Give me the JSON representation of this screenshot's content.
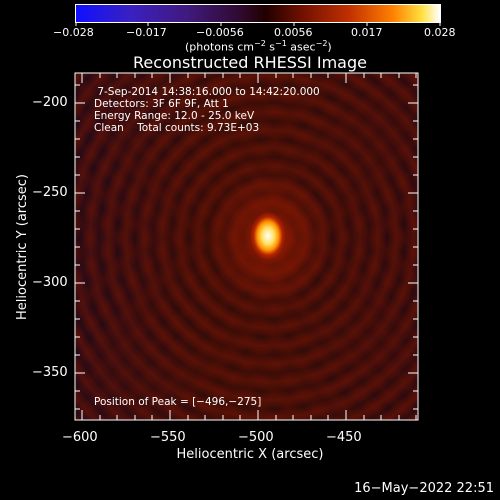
{
  "colorbar": {
    "ticks": [
      "−0.028",
      "−0.017",
      "−0.0056",
      "0.0056",
      "0.017",
      "0.028"
    ],
    "units_prefix": "(photons cm",
    "units_sup1": "−2",
    "units_mid1": " s",
    "units_sup2": "−1",
    "units_mid2": " asec",
    "units_sup3": "−2",
    "units_suffix": ")"
  },
  "title": "Reconstructed RHESSI Image",
  "info": {
    "time": " 7-Sep-2014 14:38:16.000 to 14:42:20.000",
    "detectors": "Detectors: 3F 6F 9F, Att 1",
    "energy": "Energy Range: 12.0 - 25.0 keV",
    "clean": "Clean    Total counts: 9.73E+03"
  },
  "peak_label": "Position of Peak = [−496,−275]",
  "x_axis": {
    "label": "Heliocentric X (arcsec)",
    "ticks": [
      "−600",
      "−550",
      "−500",
      "−450"
    ]
  },
  "y_axis": {
    "label": "Heliocentric Y (arcsec)",
    "ticks": [
      "−200",
      "−250",
      "−300",
      "−350"
    ]
  },
  "timestamp": "16−May−2022 22:51",
  "colors": {
    "background": "#000000",
    "foreground": "#ffffff"
  }
}
